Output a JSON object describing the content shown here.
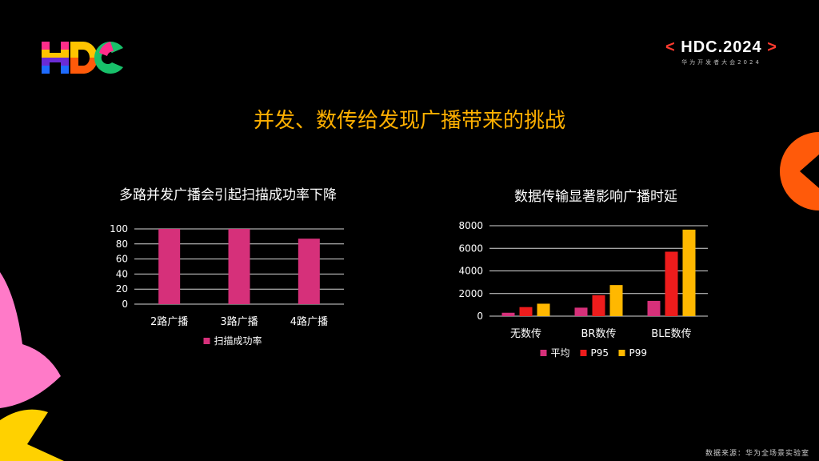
{
  "header": {
    "conference_open": "<",
    "conference_name": "HDC.2024",
    "conference_close": ">",
    "conference_subtitle": "华为开发者大会2024"
  },
  "slide": {
    "title": "并发、数传给发现广播带来的挑战"
  },
  "colors": {
    "title": "#ffb000",
    "pink": "#d6307a",
    "red": "#ee1c1c",
    "yellow": "#ffb800",
    "orange": "#ff5a0a"
  },
  "chart_data": [
    {
      "type": "bar",
      "title": "多路并发广播会引起扫描成功率下降",
      "categories": [
        "2路广播",
        "3路广播",
        "4路广播"
      ],
      "series": [
        {
          "name": "扫描成功率",
          "values": [
            100,
            100,
            87
          ]
        }
      ],
      "ylim": [
        0,
        100
      ],
      "yticks": [
        0,
        20,
        40,
        60,
        80,
        100
      ],
      "grid": true,
      "legend": "bottom"
    },
    {
      "type": "bar",
      "title": "数据传输显著影响广播时延",
      "categories": [
        "无数传",
        "BR数传",
        "BLE数传"
      ],
      "series": [
        {
          "name": "平均",
          "values": [
            300,
            750,
            1350
          ]
        },
        {
          "name": "P95",
          "values": [
            800,
            1850,
            5700
          ]
        },
        {
          "name": "P99",
          "values": [
            1100,
            2750,
            7650
          ]
        }
      ],
      "ylim": [
        0,
        8000
      ],
      "yticks": [
        0,
        2000,
        4000,
        6000,
        8000
      ],
      "grid": true,
      "legend": "bottom"
    }
  ],
  "footer": {
    "source": "数据来源：华为全场景实验室"
  }
}
